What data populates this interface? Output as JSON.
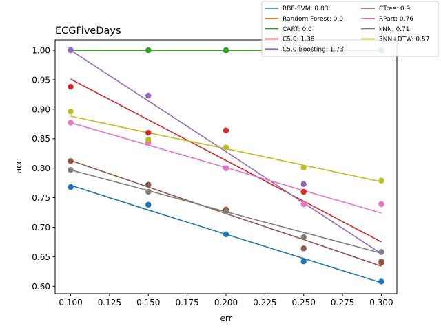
{
  "chart_data": {
    "type": "scatter",
    "title": "ECGFiveDays",
    "xlabel": "err",
    "ylabel": "acc",
    "xlim": [
      0.09,
      0.31
    ],
    "ylim": [
      0.5875,
      1.0175
    ],
    "xticks": [
      0.1,
      0.125,
      0.15,
      0.175,
      0.2,
      0.225,
      0.25,
      0.275,
      0.3
    ],
    "xtick_labels": [
      "0.100",
      "0.125",
      "0.150",
      "0.175",
      "0.200",
      "0.225",
      "0.250",
      "0.275",
      "0.300"
    ],
    "yticks": [
      0.6,
      0.65,
      0.7,
      0.75,
      0.8,
      0.85,
      0.9,
      0.95,
      1.0
    ],
    "ytick_labels": [
      "0.60",
      "0.65",
      "0.70",
      "0.75",
      "0.80",
      "0.85",
      "0.90",
      "0.95",
      "1.00"
    ],
    "grid": false,
    "legend_position": "top-right, above plot",
    "x": [
      0.1,
      0.15,
      0.2,
      0.25,
      0.3
    ],
    "series": [
      {
        "name": "RBF-SVM: 0.83",
        "color": "#1f77b4",
        "points": [
          0.768,
          0.738,
          0.688,
          0.642,
          0.608
        ],
        "fit": [
          0.771,
          0.729,
          0.688,
          0.647,
          0.606
        ]
      },
      {
        "name": "Random Forest: 0.0",
        "color": "#ff7f0e",
        "points": [
          1.0,
          1.0,
          1.0,
          1.0,
          1.0
        ],
        "fit": [
          1.0,
          1.0,
          1.0,
          1.0,
          1.0
        ]
      },
      {
        "name": "CART: 0.0",
        "color": "#2ca02c",
        "points": [
          1.0,
          1.0,
          1.0,
          1.0,
          1.0
        ],
        "fit": [
          1.0,
          1.0,
          1.0,
          1.0,
          1.0
        ]
      },
      {
        "name": "C5.0: 1.38",
        "color": "#d62728",
        "points": [
          0.938,
          0.86,
          0.864,
          0.76,
          0.64
        ],
        "fit": [
          0.951,
          0.882,
          0.813,
          0.744,
          0.675
        ]
      },
      {
        "name": "C5.0-Boosting: 1.73",
        "color": "#9467bd",
        "points": [
          1.0,
          0.923,
          0.8,
          0.773,
          0.658
        ],
        "fit": [
          1.0,
          0.914,
          0.828,
          0.741,
          0.655
        ]
      },
      {
        "name": "CTree: 0.9",
        "color": "#8c564b",
        "points": [
          0.812,
          0.772,
          0.73,
          0.664,
          0.642
        ],
        "fit": [
          0.813,
          0.768,
          0.723,
          0.679,
          0.634
        ]
      },
      {
        "name": "RPart: 0.76",
        "color": "#e377c2",
        "points": [
          0.877,
          0.843,
          0.8,
          0.739,
          0.739
        ],
        "fit": [
          0.877,
          0.839,
          0.801,
          0.762,
          0.724
        ]
      },
      {
        "name": "kNN: 0.71",
        "color": "#7f7f7f",
        "points": [
          0.797,
          0.76,
          0.726,
          0.683,
          0.658
        ],
        "fit": [
          0.797,
          0.762,
          0.726,
          0.691,
          0.656
        ]
      },
      {
        "name": "3NN+DTW: 0.57",
        "color": "#bcbd22",
        "points": [
          0.896,
          0.848,
          0.835,
          0.801,
          0.779
        ],
        "fit": [
          0.888,
          0.86,
          0.833,
          0.805,
          0.777
        ]
      }
    ]
  }
}
